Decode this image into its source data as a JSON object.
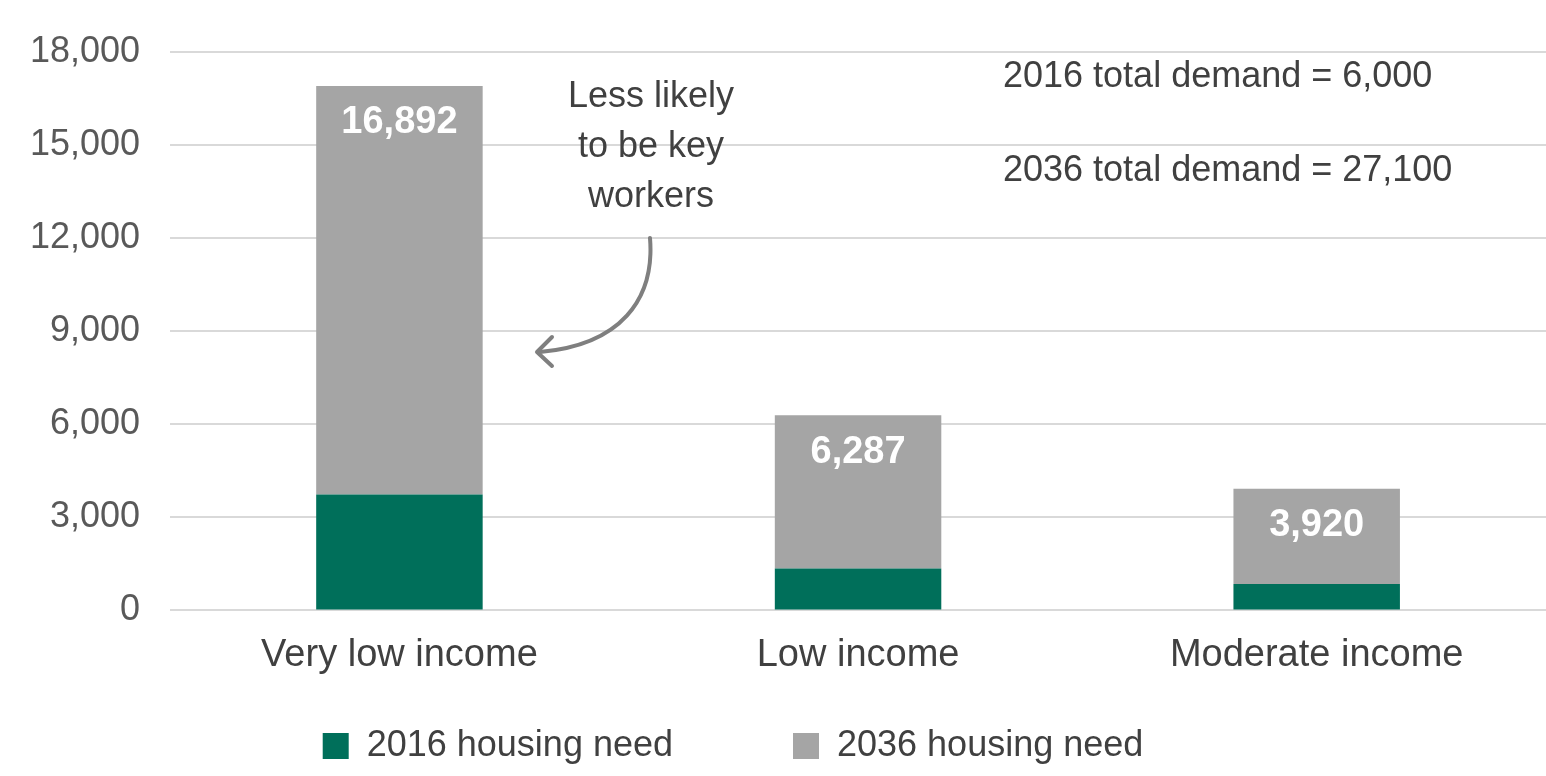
{
  "chart_data": {
    "type": "bar",
    "stacked": true,
    "categories": [
      "Very low income",
      "Low income",
      "Moderate income"
    ],
    "series": [
      {
        "name": "2016 housing need",
        "color": "#006f5a",
        "values": [
          3730,
          1350,
          850
        ]
      },
      {
        "name": "2036 housing need",
        "color": "#a5a5a5",
        "values": [
          13162,
          4937,
          3070
        ]
      }
    ],
    "totals": [
      "16,892",
      "6,287",
      "3,920"
    ],
    "ylim": [
      0,
      18000
    ],
    "yticks": [
      {
        "value": 0,
        "label": "0"
      },
      {
        "value": 3000,
        "label": "3,000"
      },
      {
        "value": 6000,
        "label": "6,000"
      },
      {
        "value": 9000,
        "label": "9,000"
      },
      {
        "value": 12000,
        "label": "12,000"
      },
      {
        "value": 15000,
        "label": "15,000"
      },
      {
        "value": 18000,
        "label": "18,000"
      }
    ],
    "grid": "y",
    "legend": "bottom",
    "annotations": [
      "Less likely to be key workers",
      "2016 total demand = 6,000",
      "2036 total demand = 27,100"
    ]
  }
}
